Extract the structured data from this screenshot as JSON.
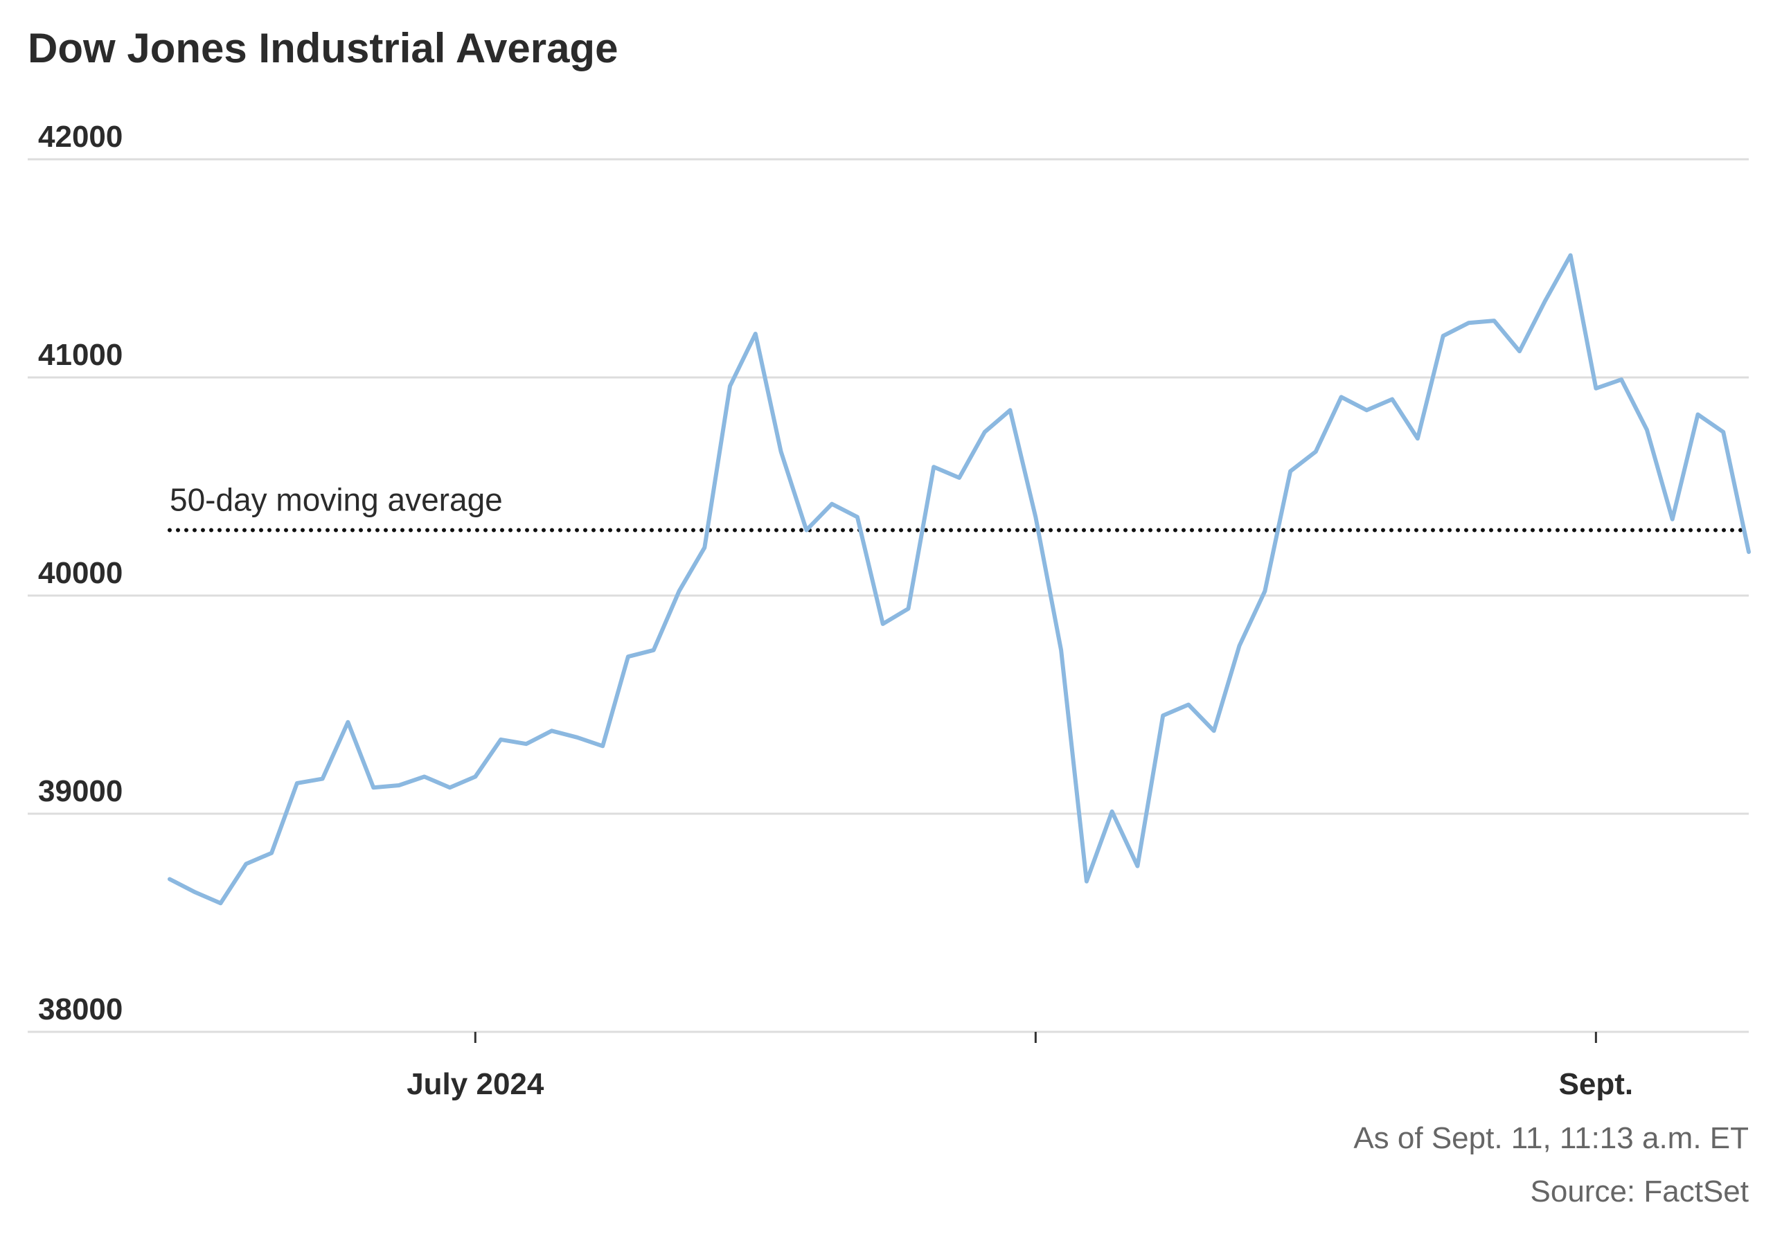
{
  "chart_data": {
    "type": "line",
    "title": "Dow Jones Industrial Average",
    "ylim": [
      38000,
      42000
    ],
    "yticks": [
      "42000",
      "41000",
      "40000",
      "39000",
      "38000"
    ],
    "ytick_values": [
      42000,
      41000,
      40000,
      39000,
      38000
    ],
    "xtick_labels": [
      "July 2024",
      "",
      "Sept."
    ],
    "xtick_positions": [
      12,
      34,
      56
    ],
    "x_index_range": [
      0,
      62
    ],
    "grid": true,
    "series": [
      {
        "values": [
          38700,
          38640,
          38590,
          38770,
          38820,
          39140,
          39160,
          39420,
          39120,
          39130,
          39170,
          39120,
          39170,
          39340,
          39320,
          39380,
          39350,
          39310,
          39720,
          39750,
          40020,
          40220,
          40960,
          41200,
          40660,
          40300,
          40420,
          40360,
          39870,
          39940,
          40590,
          40540,
          40750,
          40850,
          40360,
          39750,
          38690,
          39010,
          38760,
          39450,
          39500,
          39380,
          39770,
          40020,
          40570,
          40660,
          40910,
          40850,
          40900,
          40720,
          41190,
          41250,
          41260,
          41120,
          41350,
          41560,
          40950,
          40990,
          40760,
          40350,
          40830,
          40750,
          40200
        ]
      }
    ],
    "reference_line": {
      "value": 40300,
      "label": "50-day moving average"
    },
    "colors": {
      "series": "#8bb8e0",
      "reference": "#111111",
      "grid": "#dddddd",
      "text": "#2b2b2b",
      "footnote": "#666666"
    }
  },
  "footnotes": {
    "as_of": "As of Sept. 11, 11:13 a.m. ET",
    "source": "Source: FactSet"
  }
}
